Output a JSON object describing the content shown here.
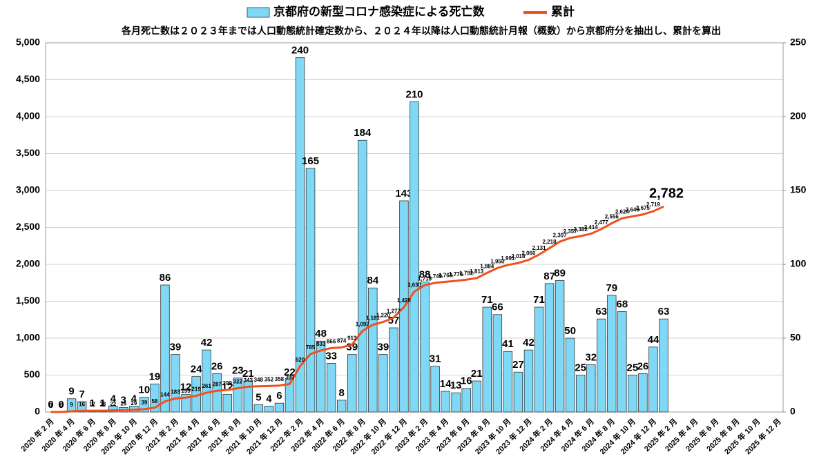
{
  "chart_data": {
    "type": "bar_line",
    "title": "各月死亡数は２０２３年までは人口動態統計確定数から、２０２４年以降は人口動態統計月報（概数）から京都府分を抽出し、累計を算出",
    "categories": [
      "2020 年 2 月",
      null,
      "2020 年 4 月",
      null,
      "2020 年 6 月",
      null,
      "2020 年 8 月",
      null,
      "2020 年 10 月",
      null,
      "2020 年 12 月",
      null,
      "2021 年 2 月",
      null,
      "2021 年 4 月",
      null,
      "2021 年 6 月",
      null,
      "2021 年 8 月",
      null,
      "2021 年 10 月",
      null,
      "2021 年 12 月",
      null,
      "2022 年 2 月",
      null,
      "2022 年 4 月",
      null,
      "2022 年 6 月",
      null,
      "2022 年 8 月",
      null,
      "2022 年 10 月",
      null,
      "2022 年 12 月",
      null,
      "2023 年 2 月",
      null,
      "2023 年 4 月",
      null,
      "2023 年 6 月",
      null,
      "2023 年 8 月",
      null,
      "2023 年 10 月",
      null,
      "2023 年 12 月",
      null,
      "2024 年 2 月",
      null,
      "2024 年 4 月",
      null,
      "2024 年 6 月",
      null,
      "2024 年 8 月",
      null,
      "2024 年 10 月",
      null,
      "2024 年 12 月",
      null,
      "2025 年 2 月",
      null,
      "2025 年 4 月",
      null,
      "2025 年 6 月",
      null,
      "2025 年 8 月",
      null,
      "2025 年 10 月",
      null,
      "2025 年 12 月"
    ],
    "series": [
      {
        "name": "京都府の新型コロナ感染症による死亡数",
        "color": "#7fd8f6",
        "axis": "y2",
        "kind": "bar",
        "values": [
          0,
          0,
          9,
          7,
          1,
          1,
          4,
          3,
          4,
          10,
          19,
          86,
          39,
          12,
          24,
          42,
          26,
          12,
          23,
          21,
          5,
          4,
          6,
          22,
          240,
          165,
          48,
          33,
          8,
          39,
          184,
          84,
          39,
          57,
          143,
          210,
          88,
          31,
          14,
          13,
          16,
          21,
          71,
          66,
          41,
          27,
          42,
          71,
          87,
          89,
          50,
          25,
          32,
          63,
          79,
          68,
          25,
          26,
          44,
          63,
          null,
          null,
          null,
          null,
          null,
          null,
          null,
          null,
          null,
          null,
          null
        ]
      },
      {
        "name": "累計",
        "color": "#f0501e",
        "axis": "y",
        "kind": "line",
        "values": [
          0,
          0,
          9,
          16,
          17,
          18,
          22,
          25,
          29,
          39,
          58,
          144,
          183,
          195,
          219,
          261,
          287,
          299,
          322,
          343,
          348,
          352,
          358,
          380,
          620,
          785,
          833,
          866,
          874,
          913,
          1097,
          1181,
          1220,
          1277,
          1420,
          1630,
          1718,
          1749,
          1763,
          1776,
          1792,
          1813,
          1884,
          1950,
          1991,
          2018,
          2060,
          2131,
          2218,
          2307,
          2357,
          2382,
          2414,
          2477,
          2556,
          2624,
          2649,
          2675,
          2719,
          2782,
          null,
          null,
          null,
          null,
          null,
          null,
          null,
          null,
          null,
          null,
          null
        ],
        "value_labels": [
          "0",
          "0",
          "9",
          "16",
          "17",
          "18",
          "22",
          "25",
          "29",
          "39",
          "58",
          "144",
          "183",
          "195",
          "219",
          "261",
          "287",
          "299",
          "322",
          "343",
          "348",
          "352",
          "358",
          "380",
          "620",
          "785",
          "833",
          "866",
          "874",
          "913",
          "1,097",
          "1,181",
          "1,220",
          "1,277",
          "1,420",
          "1,630",
          "1,718",
          "1,749",
          "1,763",
          "1,776",
          "1,792",
          "1,813",
          "1,884",
          "1,950",
          "1,991",
          "2,018",
          "2,060",
          "2,131",
          "2,218",
          "2,307",
          "2,357",
          "2,382",
          "2,414",
          "2,477",
          "2,556",
          "2,624",
          "2,649",
          "2,675",
          "2,719",
          "2,782",
          null,
          null,
          null,
          null,
          null,
          null,
          null,
          null,
          null,
          null,
          null
        ]
      }
    ],
    "ylim": [
      0,
      5000
    ],
    "yticks": [
      0,
      500,
      {
        "value": 1000,
        "label": "1,000"
      },
      {
        "value": 1500,
        "label": "1,500"
      },
      {
        "value": 2000,
        "label": "2,000"
      },
      {
        "value": 2500,
        "label": "2,500"
      },
      {
        "value": 3000,
        "label": "3,000"
      },
      {
        "value": 3500,
        "label": "3,500"
      },
      {
        "value": 4000,
        "label": "4,000"
      },
      {
        "value": 4500,
        "label": "4,500"
      },
      {
        "value": 5000,
        "label": "5,000"
      }
    ],
    "y2lim": [
      0,
      250
    ],
    "y2ticks": [
      0,
      50,
      100,
      150,
      200,
      250
    ],
    "grid": true
  }
}
